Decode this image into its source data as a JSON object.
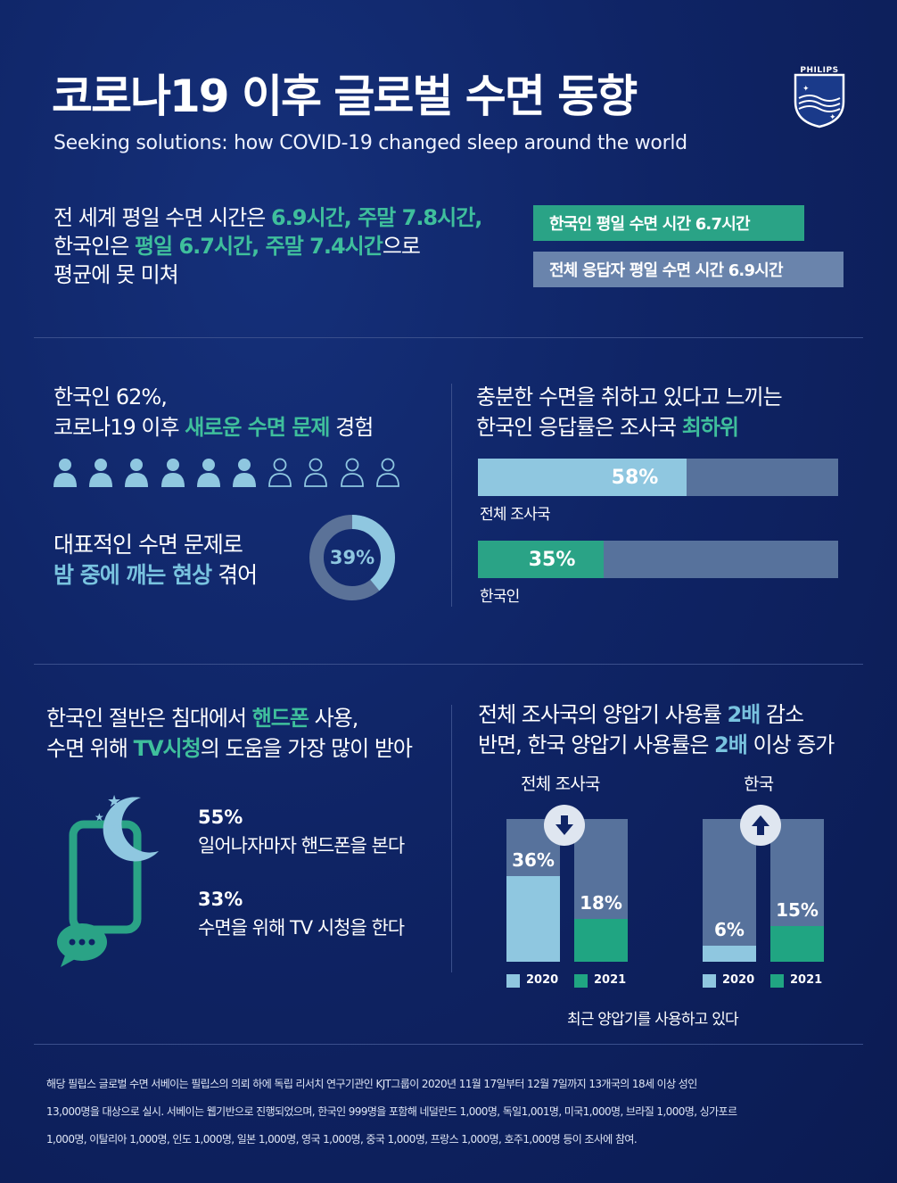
{
  "header": {
    "title": "코로나19 이후 글로벌 수면 동향",
    "subtitle": "Seeking solutions: how COVID-19 changed sleep around the world",
    "logo_text": "PHILIPS"
  },
  "intro": {
    "line1_a": "전 세계 평일 수면 시간은 ",
    "line1_b": "6.9시간, 주말 7.8시간,",
    "line2_a": "한국인은 ",
    "line2_b": "평일 6.7시간, 주말 7.4시간",
    "line2_c": "으로",
    "line3": "평균에 못 미쳐",
    "box_korea": "한국인 평일 수면 시간  6.7시간",
    "box_all": "전체 응답자 평일 수면 시간 6.9시간"
  },
  "problems": {
    "line1": "한국인 62%,",
    "line2_a": "코로나19 이후 ",
    "line2_b": "새로운 수면 문제",
    "line2_c": " 경험",
    "people_filled": 6,
    "people_total": 10,
    "wake_line1": "대표적인 수면 문제로",
    "wake_line2_a": "밤 중에 깨는 현상",
    "wake_line2_b": " 겪어",
    "donut_value": "39%",
    "donut_fraction": 0.39
  },
  "sufficient": {
    "line1": "충분한 수면을 취하고 있다고 느끼는",
    "line2_a": "한국인 응답률은 조사국 ",
    "line2_b": "최하위",
    "bar1_value": "58%",
    "bar1_fraction": 0.58,
    "bar1_label": "전체 조사국",
    "bar2_value": "35%",
    "bar2_fraction": 0.35,
    "bar2_label": "한국인"
  },
  "phone": {
    "line1_a": "한국인 절반은 침대에서 ",
    "line1_b": "핸드폰",
    "line1_c": " 사용,",
    "line2_a": "수면 위해 ",
    "line2_b": "TV시청",
    "line2_c": "의 도움을 가장 많이 받아",
    "stat1_value": "55%",
    "stat1_text": "일어나자마자 핸드폰을 본다",
    "stat2_value": "33%",
    "stat2_text": "수면을 위해 TV 시청을 한다"
  },
  "cpap": {
    "line1_a": "전체 조사국의 양압기 사용률 ",
    "line1_b": "2배",
    "line1_c": " 감소",
    "line2_a": "반면, 한국 양압기 사용률은 ",
    "line2_b": "2배",
    "line2_c": " 이상 증가",
    "group1_label": "전체 조사국",
    "group2_label": "한국",
    "caption": "최근 양압기를 사용하고 있다",
    "legend_2020": "2020",
    "legend_2021": "2021"
  },
  "chart_data": {
    "type": "bar",
    "categories": [
      "전체 조사국",
      "한국"
    ],
    "series": [
      {
        "name": "2020",
        "values": [
          36,
          6
        ]
      },
      {
        "name": "2021",
        "values": [
          18,
          15
        ]
      }
    ],
    "value_labels": [
      [
        "36%",
        "18%"
      ],
      [
        "6%",
        "15%"
      ]
    ],
    "ylim": [
      0,
      100
    ],
    "colors": {
      "2020": "#8fc7e0",
      "2021": "#20a582"
    }
  },
  "footer": {
    "line1": "해당 필립스 글로벌 수면 서베이는 필립스의 의뢰 하에 독립 리서치 연구기관인 KJT그룹이 2020년 11월 17일부터 12월 7일까지 13개국의 18세 이상 성인",
    "line2": "13,000명을 대상으로 실시. 서베이는 웹기반으로 진행되었으며, 한국인 999명을 포함해 네덜란드 1,000명, 독일1,001명, 미국1,000명, 브라질 1,000명, 싱가포르",
    "line3": "1,000명, 이탈리아 1,000명, 인도 1,000명, 일본 1,000명, 영국 1,000명, 중국 1,000명, 프랑스 1,000명, 호주1,000명 등이 조사에 참여."
  },
  "colors": {
    "background": "#0f2465",
    "teal": "#3fbf9c",
    "teal_dark": "#20a582",
    "light_blue": "#8fc7e0",
    "slate": "#57729c"
  }
}
